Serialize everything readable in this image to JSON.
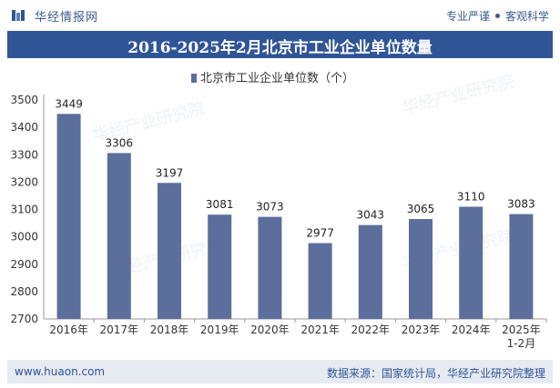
{
  "header": {
    "brand": "华经情报网",
    "slogan_left": "专业严谨",
    "slogan_right": "客观科学"
  },
  "title": "2016-2025年2月北京市工业企业单位数量",
  "footer": {
    "website": "www.huaon.com",
    "source": "数据来源：国家统计局，华经产业研究院整理"
  },
  "watermark": "华经产业研究院",
  "colors": {
    "bar": "#5b6e9c",
    "title_bg": "#2f5597",
    "footer_bg": "#e6eaf1"
  },
  "chart_data": {
    "type": "bar",
    "title": "2016-2025年2月北京市工业企业单位数量",
    "legend": "北京市工业企业单位数（个）",
    "legend_position": "top-center",
    "categories": [
      "2016年",
      "2017年",
      "2018年",
      "2019年",
      "2020年",
      "2021年",
      "2022年",
      "2023年",
      "2024年",
      "2025年\n1-2月"
    ],
    "values": [
      3449,
      3306,
      3197,
      3081,
      3073,
      2977,
      3043,
      3065,
      3110,
      3083
    ],
    "ylim": [
      2700,
      3500
    ],
    "yticks": [
      2700,
      2800,
      2900,
      3000,
      3100,
      3200,
      3300,
      3400,
      3500
    ],
    "xlabel": "",
    "ylabel": "",
    "grid": false
  }
}
